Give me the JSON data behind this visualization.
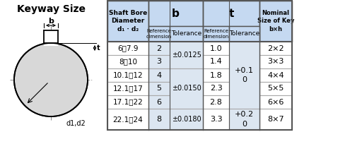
{
  "title": "Keyway Size",
  "fig_bg": "#ffffff",
  "table_header_bg": "#c5d9f1",
  "table_data_bg_blue": "#dce6f1",
  "table_data_bg_white": "#ffffff",
  "table_border_dark": "#555555",
  "table_border_light": "#aaaaaa",
  "diagram_gray": "#d8d8d8",
  "tilde": "～",
  "data_rows": [
    [
      "6～7.9",
      "2",
      "±0.0125",
      "1.0",
      "+0.1\n0",
      "2×2"
    ],
    [
      "8～10",
      "3",
      "",
      "1.4",
      "",
      "3×3"
    ],
    [
      "10.1～12",
      "4",
      "",
      "1.8",
      "",
      "4×4"
    ],
    [
      "12.1～17",
      "5",
      "±0.0150",
      "2.3",
      "",
      "5×5"
    ],
    [
      "17.1～22",
      "6",
      "",
      "2.8",
      "",
      "6×6"
    ],
    [
      "22.1～24",
      "8",
      "±0.0180",
      "3.3",
      "+0.2\n0",
      "8×7"
    ]
  ]
}
